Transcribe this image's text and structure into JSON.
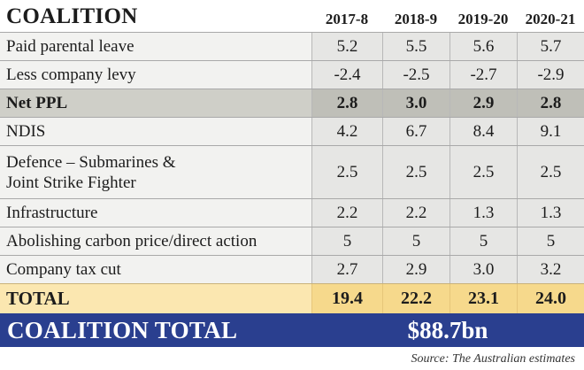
{
  "table": {
    "title": "COALITION",
    "years": [
      "2017-8",
      "2018-9",
      "2019-20",
      "2020-21"
    ],
    "rows": [
      {
        "label": "Paid parental leave",
        "values": [
          "5.2",
          "5.5",
          "5.6",
          "5.7"
        ]
      },
      {
        "label": "Less company levy",
        "values": [
          "-2.4",
          "-2.5",
          "-2.7",
          "-2.9"
        ]
      },
      {
        "label": "Net PPL",
        "values": [
          "2.8",
          "3.0",
          "2.9",
          "2.8"
        ]
      },
      {
        "label": "NDIS",
        "values": [
          "4.2",
          "6.7",
          "8.4",
          "9.1"
        ]
      },
      {
        "label_line1": "Defence – Submarines &",
        "label_line2": "Joint Strike Fighter",
        "values": [
          "2.5",
          "2.5",
          "2.5",
          "2.5"
        ]
      },
      {
        "label": "Infrastructure",
        "values": [
          "2.2",
          "2.2",
          "1.3",
          "1.3"
        ]
      },
      {
        "label": "Abolishing carbon price/direct action",
        "values": [
          "5",
          "5",
          "5",
          "5"
        ]
      },
      {
        "label": "Company tax cut",
        "values": [
          "2.7",
          "2.9",
          "3.0",
          "3.2"
        ]
      }
    ],
    "total": {
      "label": "TOTAL",
      "values": [
        "19.4",
        "22.2",
        "23.1",
        "24.0"
      ]
    },
    "grand_total": {
      "label": "COALITION TOTAL",
      "value": "$88.7bn"
    }
  },
  "source": "Source:  The Australian estimates",
  "colors": {
    "banner_blue": "#2a3f8f",
    "total_yellow": "#f6d98c",
    "net_grey": "#bfbfb8",
    "row_grey": "#e6e6e4"
  }
}
